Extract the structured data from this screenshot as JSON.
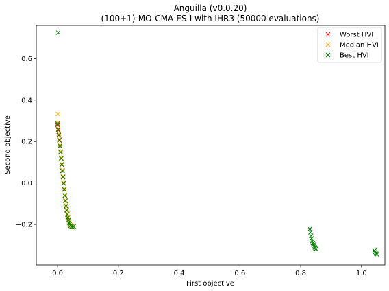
{
  "chart_data": {
    "type": "scatter",
    "title": "Anguilla (v0.0.20)",
    "subtitle": "(100+1)-MO-CMA-ES-I with IHR3 (50000 evaluations)",
    "xlabel": "First objective",
    "ylabel": "Second objective",
    "xlim": [
      -0.07,
      1.077
    ],
    "ylim": [
      -0.395,
      0.76
    ],
    "xticks": [
      0.0,
      0.2,
      0.4,
      0.6,
      0.8,
      1.0
    ],
    "xtick_labels": [
      "0.0",
      "0.2",
      "0.4",
      "0.6",
      "0.8",
      "1.0"
    ],
    "yticks": [
      -0.2,
      0.0,
      0.2,
      0.4,
      0.6
    ],
    "ytick_labels": [
      "−0.2",
      "0.0",
      "0.2",
      "0.4",
      "0.6"
    ],
    "grid": false,
    "legend_position": "top-right",
    "marker": "x",
    "series": [
      {
        "name": "Worst HVI",
        "color": "#ff0000",
        "x": [
          0.0,
          0.002,
          0.004,
          0.006,
          0.008,
          0.01,
          0.012,
          0.014,
          0.016,
          0.018,
          0.02,
          0.022,
          0.024,
          0.026,
          0.028,
          0.03,
          0.032,
          0.034,
          0.036,
          0.038,
          0.04,
          0.043,
          0.046,
          0.05
        ],
        "y": [
          0.28,
          0.255,
          0.23,
          0.205,
          0.18,
          0.15,
          0.12,
          0.09,
          0.06,
          0.03,
          0.0,
          -0.03,
          -0.06,
          -0.085,
          -0.11,
          -0.13,
          -0.15,
          -0.165,
          -0.178,
          -0.19,
          -0.198,
          -0.205,
          -0.21,
          -0.212
        ]
      },
      {
        "name": "Median HVI",
        "color": "#ffa500",
        "x": [
          0.001,
          0.0,
          0.002,
          0.004,
          0.006,
          0.008,
          0.01,
          0.012,
          0.014,
          0.016,
          0.018,
          0.02,
          0.022,
          0.024,
          0.026,
          0.028,
          0.03,
          0.032,
          0.034,
          0.036,
          0.038,
          0.04,
          0.043,
          0.046,
          0.05
        ],
        "y": [
          0.333,
          0.29,
          0.262,
          0.236,
          0.21,
          0.182,
          0.152,
          0.122,
          0.092,
          0.062,
          0.032,
          0.002,
          -0.028,
          -0.058,
          -0.083,
          -0.108,
          -0.128,
          -0.148,
          -0.163,
          -0.176,
          -0.188,
          -0.196,
          -0.203,
          -0.208,
          -0.21
        ]
      },
      {
        "name": "Best HVI",
        "color": "#008000",
        "x": [
          0.002,
          0.0,
          0.002,
          0.004,
          0.006,
          0.008,
          0.01,
          0.012,
          0.014,
          0.016,
          0.018,
          0.02,
          0.022,
          0.024,
          0.026,
          0.028,
          0.03,
          0.032,
          0.034,
          0.036,
          0.038,
          0.04,
          0.043,
          0.046,
          0.05,
          0.053,
          0.83,
          0.832,
          0.834,
          0.836,
          0.838,
          0.84,
          0.842,
          0.844,
          0.846,
          0.848,
          0.85,
          1.043,
          1.045,
          1.047,
          1.049,
          1.051
        ],
        "y": [
          0.725,
          0.285,
          0.258,
          0.232,
          0.207,
          0.178,
          0.148,
          0.118,
          0.088,
          0.058,
          0.028,
          -0.002,
          -0.032,
          -0.062,
          -0.087,
          -0.112,
          -0.132,
          -0.152,
          -0.167,
          -0.18,
          -0.192,
          -0.199,
          -0.206,
          -0.211,
          -0.214,
          -0.21,
          -0.222,
          -0.238,
          -0.254,
          -0.268,
          -0.28,
          -0.29,
          -0.298,
          -0.305,
          -0.31,
          -0.314,
          -0.318,
          -0.326,
          -0.332,
          -0.337,
          -0.341,
          -0.344
        ]
      }
    ]
  }
}
